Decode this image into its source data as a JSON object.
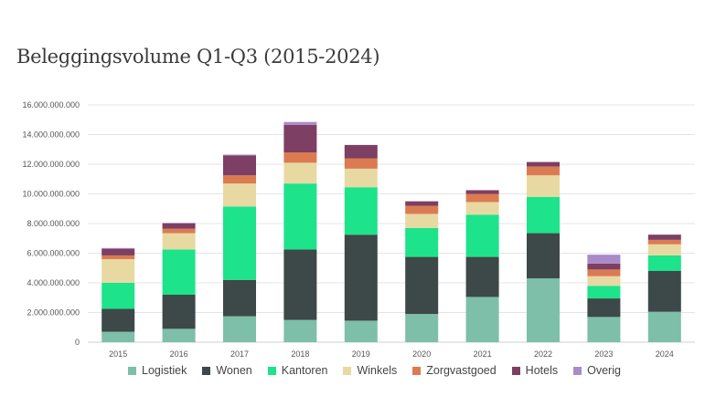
{
  "title": "Beleggingsvolume Q1-Q3 (2015-2024)",
  "chart_data": {
    "type": "bar",
    "stacked": true,
    "title": "Beleggingsvolume Q1-Q3 (2015-2024)",
    "xlabel": "",
    "ylabel": "",
    "ylim": [
      0,
      16000000000
    ],
    "yticks": [
      0,
      2000000000,
      4000000000,
      6000000000,
      8000000000,
      10000000000,
      12000000000,
      14000000000,
      16000000000
    ],
    "ytick_labels": [
      "0",
      "2.000.000.000",
      "4.000.000.000",
      "6.000.000.000",
      "8.000.000.000",
      "10.000.000.000",
      "12.000.000.000",
      "14.000.000.000",
      "16.000.000.000"
    ],
    "grid": true,
    "legend_position": "bottom",
    "categories": [
      "2015",
      "2016",
      "2017",
      "2018",
      "2019",
      "2020",
      "2021",
      "2022",
      "2023",
      "2024"
    ],
    "series": [
      {
        "name": "Logistiek",
        "color": "#7dbfa9",
        "values": [
          700000000,
          900000000,
          1750000000,
          1500000000,
          1450000000,
          1900000000,
          3050000000,
          4300000000,
          1700000000,
          2050000000
        ]
      },
      {
        "name": "Wonen",
        "color": "#3d4848",
        "values": [
          1550000000,
          2300000000,
          2450000000,
          4750000000,
          5800000000,
          3850000000,
          2700000000,
          3050000000,
          1250000000,
          2750000000
        ]
      },
      {
        "name": "Kantoren",
        "color": "#1de38a",
        "values": [
          1750000000,
          3050000000,
          4950000000,
          4450000000,
          3200000000,
          1950000000,
          2850000000,
          2450000000,
          850000000,
          1050000000
        ]
      },
      {
        "name": "Winkels",
        "color": "#e8d9a2",
        "values": [
          1600000000,
          1100000000,
          1550000000,
          1400000000,
          1250000000,
          950000000,
          850000000,
          1450000000,
          650000000,
          750000000
        ]
      },
      {
        "name": "Zorgvastgoed",
        "color": "#db7b52",
        "values": [
          250000000,
          300000000,
          550000000,
          700000000,
          700000000,
          550000000,
          550000000,
          600000000,
          450000000,
          300000000
        ]
      },
      {
        "name": "Hotels",
        "color": "#7d3f63",
        "values": [
          450000000,
          350000000,
          1350000000,
          1850000000,
          900000000,
          300000000,
          250000000,
          300000000,
          400000000,
          350000000
        ]
      },
      {
        "name": "Overig",
        "color": "#a98bc9",
        "values": [
          50000000,
          50000000,
          50000000,
          200000000,
          0,
          0,
          0,
          0,
          600000000,
          0
        ]
      }
    ]
  }
}
